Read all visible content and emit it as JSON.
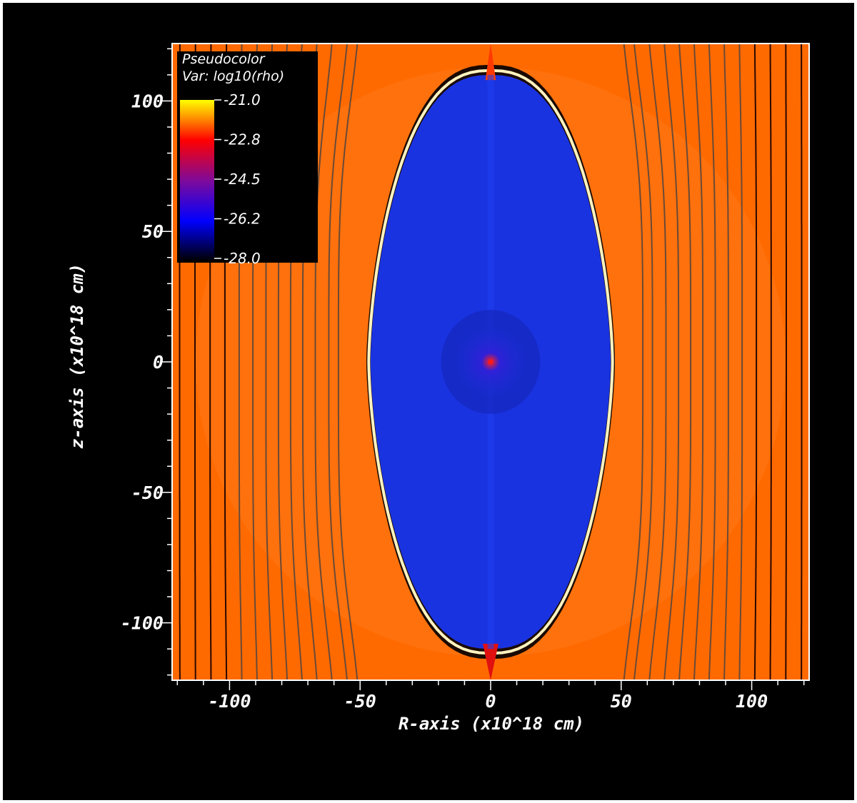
{
  "chart_data": {
    "type": "heatmap",
    "legend": {
      "title": "Pseudocolor",
      "variable": "Var: log10(rho)",
      "ticks": [
        "-21.0",
        "-22.8",
        "-24.5",
        "-26.2",
        "-28.0"
      ],
      "range": [
        -28.0,
        -21.0
      ],
      "colormap": [
        "#000000",
        "#0000ff",
        "#7f0a9a",
        "#ff0000",
        "#ff8800",
        "#ffff00"
      ]
    },
    "xlabel": "R-axis (x10^18 cm)",
    "ylabel": "z-axis (x10^18 cm)",
    "xlim": [
      -122,
      122
    ],
    "ylim": [
      -122,
      122
    ],
    "xticks": [
      {
        "value": -100,
        "label": "-100"
      },
      {
        "value": -50,
        "label": "-50"
      },
      {
        "value": 0,
        "label": "0"
      },
      {
        "value": 50,
        "label": "50"
      },
      {
        "value": 100,
        "label": "100"
      }
    ],
    "yticks": [
      {
        "value": 100,
        "label": "100"
      },
      {
        "value": 50,
        "label": "50"
      },
      {
        "value": 0,
        "label": "0"
      },
      {
        "value": -50,
        "label": "-50"
      },
      {
        "value": -100,
        "label": "-100"
      }
    ],
    "field": {
      "background_log_rho": -21.8,
      "cavity_log_rho": -26.2,
      "cavity_half_width": 46,
      "cavity_half_height": 110,
      "jet_tip_z": [
        122,
        -122
      ],
      "central_source": {
        "r": 0,
        "z": 0
      },
      "inner_bubble_radius": 19
    },
    "field_lines_x": [
      -119,
      -113,
      -107,
      -101,
      -95,
      -89,
      -83,
      -77,
      -71,
      -65,
      -59,
      -53,
      -49,
      49,
      53,
      59,
      65,
      71,
      77,
      83,
      89,
      95,
      101,
      107,
      113,
      119
    ],
    "colors": {
      "background_medium": "#ff6a00",
      "cavity": "#1a33e0",
      "shell": "#fff3c0",
      "field_line": "#2a0800",
      "axes": "#ffffff"
    }
  }
}
